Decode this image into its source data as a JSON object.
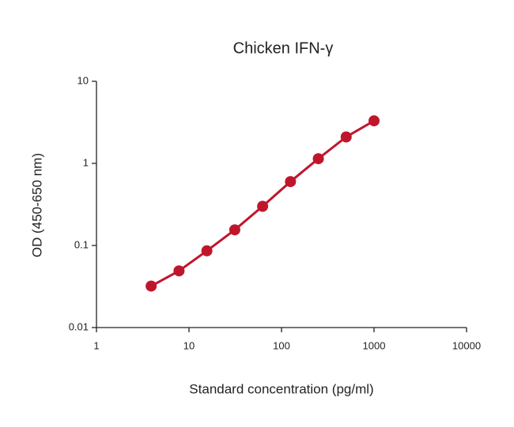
{
  "chart_data": {
    "type": "line",
    "title": "Chicken IFN-γ",
    "xlabel": "Standard concentration (pg/ml)",
    "ylabel": "OD (450-650 nm)",
    "x": [
      3.9,
      7.8,
      15.6,
      31.25,
      62.5,
      125,
      250,
      500,
      1000
    ],
    "series": [
      {
        "color": "#c0162c",
        "values": [
          0.032,
          0.049,
          0.086,
          0.155,
          0.3,
          0.6,
          1.14,
          2.1,
          3.3
        ]
      }
    ],
    "xscale": "log",
    "yscale": "log",
    "xlim": [
      1,
      10000
    ],
    "xticks": [
      1,
      10,
      100,
      1000,
      10000
    ],
    "ylim": [
      0.01,
      10
    ],
    "yticks": [
      0.01,
      0.1,
      1,
      10
    ]
  }
}
